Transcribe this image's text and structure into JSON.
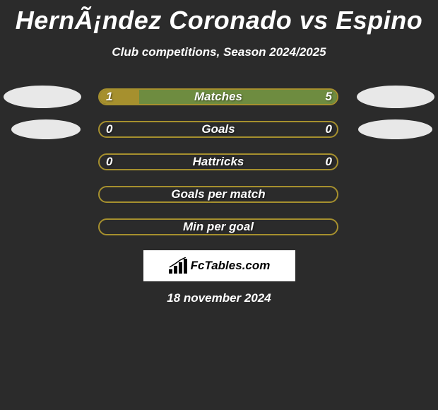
{
  "page": {
    "title": "HernÃ¡ndez Coronado vs Espino",
    "subtitle": "Club competitions, Season 2024/2025",
    "date": "18 november 2024",
    "logo_text": "FcTables.com",
    "background_color": "#2b2b2b",
    "text_color": "#ffffff"
  },
  "colors": {
    "border": "#a6902e",
    "left_fill": "#a6902e",
    "right_fill": "#6e8c40",
    "avatar": "#e8e8e8",
    "logo_bg": "#ffffff"
  },
  "stats": [
    {
      "label": "Matches",
      "left_value": "1",
      "right_value": "5",
      "left_pct": 16.67,
      "right_pct": 83.33,
      "show_left_avatar": true,
      "show_right_avatar": true,
      "avatar_size": "large"
    },
    {
      "label": "Goals",
      "left_value": "0",
      "right_value": "0",
      "left_pct": 0,
      "right_pct": 0,
      "show_left_avatar": true,
      "show_right_avatar": true,
      "avatar_size": "small"
    },
    {
      "label": "Hattricks",
      "left_value": "0",
      "right_value": "0",
      "left_pct": 0,
      "right_pct": 0,
      "show_left_avatar": false,
      "show_right_avatar": false
    },
    {
      "label": "Goals per match",
      "left_value": "",
      "right_value": "",
      "left_pct": 0,
      "right_pct": 0,
      "show_left_avatar": false,
      "show_right_avatar": false
    },
    {
      "label": "Min per goal",
      "left_value": "",
      "right_value": "",
      "left_pct": 0,
      "right_pct": 0,
      "show_left_avatar": false,
      "show_right_avatar": false
    }
  ]
}
